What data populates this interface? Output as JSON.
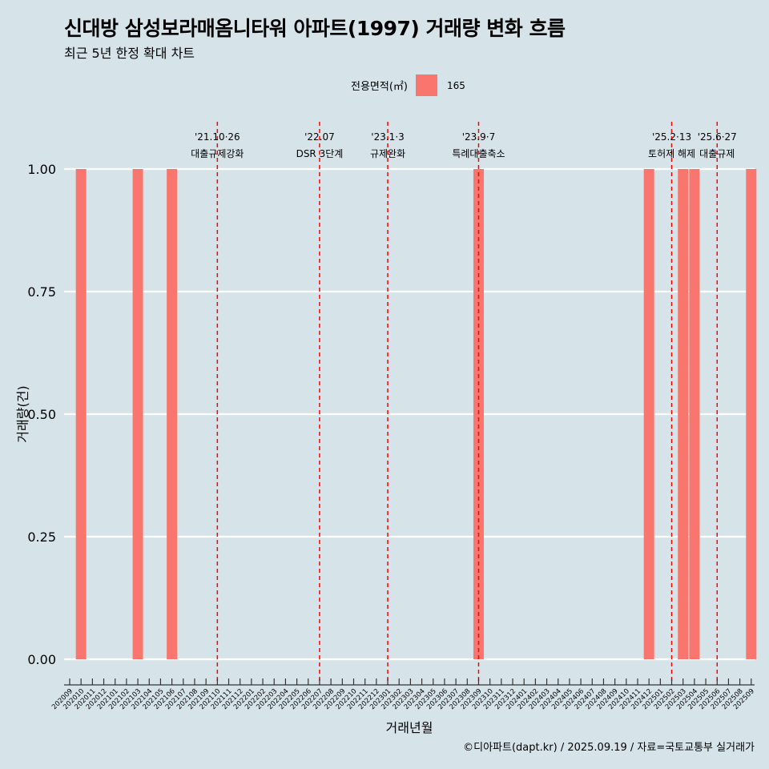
{
  "title": "신대방 삼성보라매옴니타워 아파트(1997) 거래량 변화 흐름",
  "subtitle": "최근 5년 한정 확대 차트",
  "legend": {
    "title": "전용면적(㎡)",
    "entries": [
      "165"
    ]
  },
  "caption": "©디아파트(dapt.kr) / 2025.09.19 / 자료=국토교통부 실거래가",
  "colors": {
    "bar": "#f8766d",
    "background": "#d6e4ea",
    "grid": "#ffffff",
    "event_line": "#ff0000"
  },
  "chart_data": {
    "type": "bar",
    "xlabel": "거래년월",
    "ylabel": "거래량(건)",
    "ylim": [
      0,
      1
    ],
    "yticks": [
      "0.00",
      "0.25",
      "0.50",
      "0.75",
      "1.00"
    ],
    "categories": [
      "202009",
      "202010",
      "202011",
      "202012",
      "202101",
      "202102",
      "202103",
      "202104",
      "202105",
      "202106",
      "202107",
      "202108",
      "202109",
      "202110",
      "202111",
      "202112",
      "202201",
      "202202",
      "202203",
      "202204",
      "202205",
      "202206",
      "202207",
      "202208",
      "202209",
      "202210",
      "202211",
      "202212",
      "202301",
      "202302",
      "202303",
      "202304",
      "202305",
      "202306",
      "202307",
      "202308",
      "202309",
      "202310",
      "202311",
      "202312",
      "202401",
      "202402",
      "202403",
      "202404",
      "202405",
      "202406",
      "202407",
      "202408",
      "202409",
      "202410",
      "202411",
      "202412",
      "202501",
      "202502",
      "202503",
      "202504",
      "202505",
      "202506",
      "202507",
      "202508",
      "202509"
    ],
    "series": [
      {
        "name": "165",
        "values": [
          0,
          1,
          0,
          0,
          0,
          0,
          1,
          0,
          0,
          1,
          0,
          0,
          0,
          0,
          0,
          0,
          0,
          0,
          0,
          0,
          0,
          0,
          0,
          0,
          0,
          0,
          0,
          0,
          0,
          0,
          0,
          0,
          0,
          0,
          0,
          0,
          1,
          0,
          0,
          0,
          0,
          0,
          0,
          0,
          0,
          0,
          0,
          0,
          0,
          0,
          0,
          1,
          0,
          0,
          1,
          1,
          0,
          0,
          0,
          0,
          1
        ]
      }
    ],
    "events": [
      {
        "at": "202110",
        "date": "'21.10·26",
        "label": "대출규제강화"
      },
      {
        "at": "202207",
        "date": "'22.07",
        "label": "DSR 3단계"
      },
      {
        "at": "202301",
        "date": "'23.1·3",
        "label": "규제완화"
      },
      {
        "at": "202309",
        "date": "'23.9·7",
        "label": "특례대출축소"
      },
      {
        "at": "202502",
        "date": "'25.2·13",
        "label": "토허제 해제"
      },
      {
        "at": "202506",
        "date": "'25.6·27",
        "label": "대출규제"
      }
    ]
  }
}
